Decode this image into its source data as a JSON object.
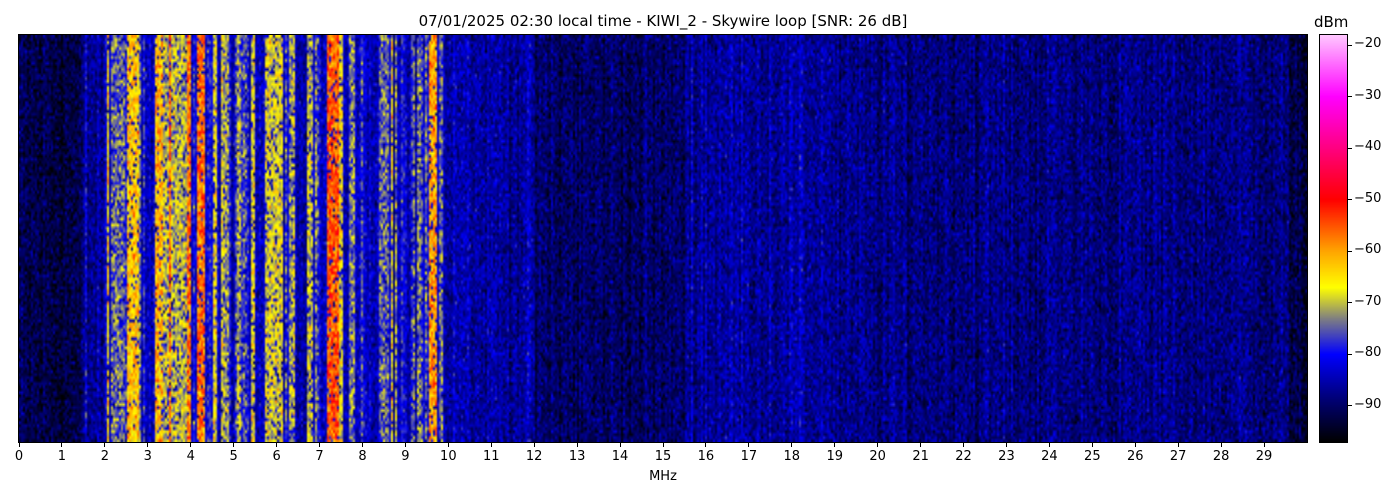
{
  "chart_data": {
    "type": "heatmap",
    "title": "07/01/2025 02:30 local time - KIWI_2 - Skywire loop [SNR: 26 dB]",
    "xlabel": "MHz",
    "ylabel": "",
    "xlim": [
      0,
      30
    ],
    "x_ticks": [
      "0",
      "1",
      "2",
      "3",
      "4",
      "5",
      "6",
      "7",
      "8",
      "9",
      "10",
      "11",
      "12",
      "13",
      "14",
      "15",
      "16",
      "17",
      "18",
      "19",
      "20",
      "21",
      "22",
      "23",
      "24",
      "25",
      "26",
      "27",
      "28",
      "29"
    ],
    "colorbar": {
      "label": "dBm",
      "range": [
        -97,
        -18
      ],
      "ticks": [
        "−20",
        "−30",
        "−40",
        "−50",
        "−60",
        "−70",
        "−80",
        "−90"
      ],
      "tick_values": [
        -20,
        -30,
        -40,
        -50,
        -60,
        -70,
        -80,
        -90
      ],
      "colormap": [
        {
          "v": -97,
          "color": "#000000"
        },
        {
          "v": -88,
          "color": "#000080"
        },
        {
          "v": -80,
          "color": "#0000ff"
        },
        {
          "v": -73,
          "color": "#808080"
        },
        {
          "v": -67,
          "color": "#ffff00"
        },
        {
          "v": -60,
          "color": "#ffa500"
        },
        {
          "v": -50,
          "color": "#ff0000"
        },
        {
          "v": -40,
          "color": "#ff0080"
        },
        {
          "v": -30,
          "color": "#ff00ff"
        },
        {
          "v": -18,
          "color": "#ffc8ff"
        }
      ]
    },
    "noise_floor_dbm": [
      {
        "from": 0,
        "to": 1.5,
        "level": -92
      },
      {
        "from": 1.5,
        "to": 2.0,
        "level": -87
      },
      {
        "from": 2.0,
        "to": 10.5,
        "level": -84
      },
      {
        "from": 10.5,
        "to": 12,
        "level": -86
      },
      {
        "from": 12,
        "to": 15.5,
        "level": -90
      },
      {
        "from": 15.5,
        "to": 19,
        "level": -86
      },
      {
        "from": 19,
        "to": 29.6,
        "level": -88
      },
      {
        "from": 29.6,
        "to": 30,
        "level": -93
      }
    ],
    "signals_dbm": [
      {
        "from": 1.53,
        "to": 1.58,
        "level": -82
      },
      {
        "from": 2.03,
        "to": 2.08,
        "level": -64
      },
      {
        "from": 2.15,
        "to": 2.45,
        "level": -74
      },
      {
        "from": 2.5,
        "to": 2.8,
        "level": -63
      },
      {
        "from": 3.15,
        "to": 3.35,
        "level": -62
      },
      {
        "from": 3.5,
        "to": 3.56,
        "level": -57
      },
      {
        "from": 3.6,
        "to": 3.9,
        "level": -70
      },
      {
        "from": 3.92,
        "to": 4.0,
        "level": -57
      },
      {
        "from": 4.15,
        "to": 4.35,
        "level": -57
      },
      {
        "from": 4.5,
        "to": 4.6,
        "level": -67
      },
      {
        "from": 4.75,
        "to": 4.9,
        "level": -71
      },
      {
        "from": 5.45,
        "to": 5.52,
        "level": -67
      },
      {
        "from": 5.75,
        "to": 6.15,
        "level": -68
      },
      {
        "from": 6.3,
        "to": 6.38,
        "level": -72
      },
      {
        "from": 6.72,
        "to": 6.78,
        "level": -69
      },
      {
        "from": 7.18,
        "to": 7.45,
        "level": -55
      },
      {
        "from": 7.45,
        "to": 7.55,
        "level": -67
      },
      {
        "from": 7.78,
        "to": 7.83,
        "level": -72
      },
      {
        "from": 8.4,
        "to": 8.62,
        "level": -74
      },
      {
        "from": 8.66,
        "to": 8.72,
        "level": -66
      },
      {
        "from": 9.55,
        "to": 9.72,
        "level": -60
      },
      {
        "from": 9.78,
        "to": 9.82,
        "level": -74
      }
    ]
  }
}
